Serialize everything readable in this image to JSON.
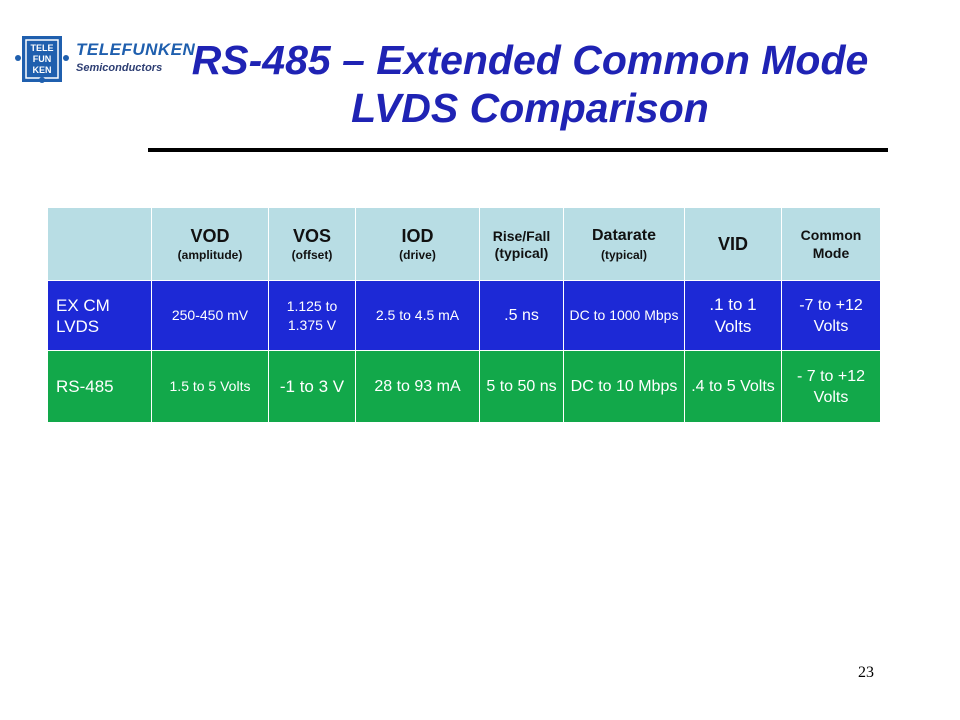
{
  "logo": {
    "badge_lines": [
      "TELE",
      "FUN",
      "KEN"
    ],
    "brand": "TELEFUNKEN",
    "sub": "Semiconductors"
  },
  "title": {
    "line1": "RS-485 – Extended Common Mode",
    "line2": "LVDS Comparison"
  },
  "table": {
    "headers": [
      {
        "main": "",
        "sub": ""
      },
      {
        "main": "VOD",
        "sub": "(amplitude)"
      },
      {
        "main": "VOS",
        "sub": "(offset)"
      },
      {
        "main": "IOD",
        "sub": "(drive)"
      },
      {
        "main": "Rise/Fall",
        "sub": "(typical)"
      },
      {
        "main": "Datarate",
        "sub": "(typical)"
      },
      {
        "main": "VID",
        "sub": ""
      },
      {
        "main": "Common",
        "sub": "Mode"
      }
    ],
    "rows": [
      {
        "label": "EX CM LVDS",
        "cells": [
          "250-450 mV",
          "1.125 to 1.375 V",
          "2.5 to 4.5 mA",
          ".5 ns",
          "DC to 1000 Mbps",
          ".1 to 1 Volts",
          "-7 to +12 Volts"
        ]
      },
      {
        "label": "RS-485",
        "cells": [
          "1.5 to 5 Volts",
          "-1 to 3 V",
          "28 to 93 mA",
          "5 to 50 ns",
          "DC to 10 Mbps",
          ".4 to 5 Volts",
          "- 7 to +12 Volts"
        ]
      }
    ]
  },
  "page_number": "23",
  "colors": {
    "title": "#1f23b4",
    "header_bg": "#b8dde4",
    "lvds_row_bg": "#1d29d6",
    "rs485_row_bg": "#12a84a",
    "logo_blue": "#1f5fae"
  }
}
